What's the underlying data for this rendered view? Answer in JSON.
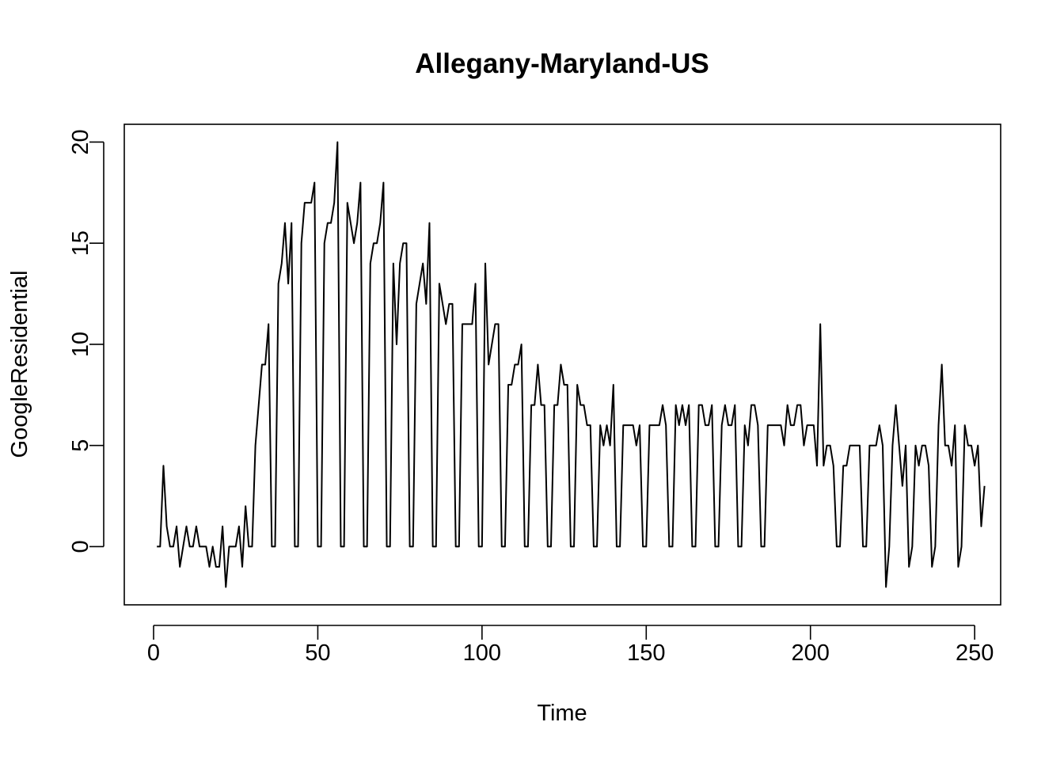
{
  "chart_data": {
    "type": "line",
    "title": "Allegany-Maryland-US",
    "xlabel": "Time",
    "ylabel": "GoogleResidential",
    "xlim": [
      -8.92,
      257.92
    ],
    "ylim": [
      -2.88,
      20.88
    ],
    "xticks": [
      0,
      50,
      100,
      150,
      200,
      250
    ],
    "yticks": [
      0,
      5,
      10,
      15,
      20
    ],
    "xtick_labels": [
      "0",
      "50",
      "100",
      "150",
      "200",
      "250"
    ],
    "ytick_labels": [
      "0",
      "5",
      "10",
      "15",
      "20"
    ],
    "grid": false,
    "line_color": "#000000",
    "series": [
      {
        "values": [
          0,
          0,
          4,
          1,
          0,
          0,
          1,
          -1,
          0,
          1,
          0,
          0,
          1,
          0,
          0,
          0,
          -1,
          0,
          -1,
          -1,
          1,
          -2,
          0,
          0,
          0,
          1,
          -1,
          2,
          0,
          0,
          5,
          7,
          9,
          9,
          11,
          0,
          0,
          13,
          14,
          16,
          13,
          16,
          0,
          0,
          15,
          17,
          17,
          17,
          18,
          0,
          0,
          15,
          16,
          16,
          17,
          20,
          0,
          0,
          17,
          16,
          15,
          16,
          18,
          0,
          0,
          14,
          15,
          15,
          16,
          18,
          0,
          0,
          14,
          10,
          14,
          15,
          15,
          0,
          0,
          12,
          13,
          14,
          12,
          16,
          0,
          0,
          13,
          12,
          11,
          12,
          12,
          0,
          0,
          11,
          11,
          11,
          11,
          13,
          0,
          0,
          14,
          9,
          10,
          11,
          11,
          0,
          0,
          8,
          8,
          9,
          9,
          10,
          0,
          0,
          7,
          7,
          9,
          7,
          7,
          0,
          0,
          7,
          7,
          9,
          8,
          8,
          0,
          0,
          8,
          7,
          7,
          6,
          6,
          0,
          0,
          6,
          5,
          6,
          5,
          8,
          0,
          0,
          6,
          6,
          6,
          6,
          5,
          6,
          0,
          0,
          6,
          6,
          6,
          6,
          7,
          6,
          0,
          0,
          7,
          6,
          7,
          6,
          7,
          0,
          0,
          7,
          7,
          6,
          6,
          7,
          0,
          0,
          6,
          7,
          6,
          6,
          7,
          0,
          0,
          6,
          5,
          7,
          7,
          6,
          0,
          0,
          6,
          6,
          6,
          6,
          6,
          5,
          7,
          6,
          6,
          7,
          7,
          5,
          6,
          6,
          6,
          4,
          11,
          4,
          5,
          5,
          4,
          0,
          0,
          4,
          4,
          5,
          5,
          5,
          5,
          0,
          0,
          5,
          5,
          5,
          6,
          5,
          -2,
          0,
          5,
          7,
          5,
          3,
          5,
          -1,
          0,
          5,
          4,
          5,
          5,
          4,
          -1,
          0,
          6,
          9,
          5,
          5,
          4,
          6,
          -1,
          0,
          6,
          5,
          5,
          4,
          5,
          1,
          3
        ]
      }
    ]
  }
}
